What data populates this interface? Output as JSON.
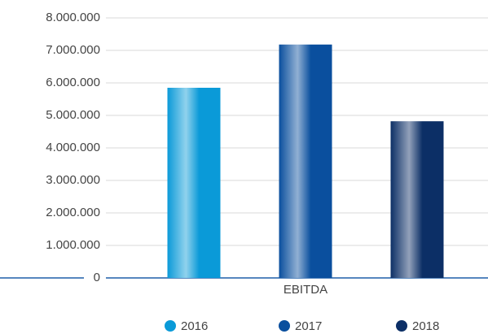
{
  "chart_data": {
    "type": "bar",
    "categories": [
      "EBITDA"
    ],
    "series": [
      {
        "name": "2016",
        "color": "#0a9ad8",
        "values": [
          5850000
        ]
      },
      {
        "name": "2017",
        "color": "#0a4f9e",
        "values": [
          7180000
        ]
      },
      {
        "name": "2018",
        "color": "#0c2f66",
        "values": [
          4820000
        ]
      }
    ],
    "ylim": [
      0,
      8000000
    ],
    "yticks": [
      0,
      {
        "value": 1000000,
        "label": "1.000.000"
      },
      {
        "value": 2000000,
        "label": "2.000.000"
      },
      {
        "value": 3000000,
        "label": "3.000.000"
      },
      {
        "value": 4000000,
        "label": "4.000.000"
      },
      {
        "value": 5000000,
        "label": "5.000.000"
      },
      {
        "value": 6000000,
        "label": "6.000.000"
      },
      {
        "value": 7000000,
        "label": "7.000.000"
      },
      {
        "value": 8000000,
        "label": "8.000.000"
      }
    ],
    "grid": true,
    "legend": "bottom"
  }
}
